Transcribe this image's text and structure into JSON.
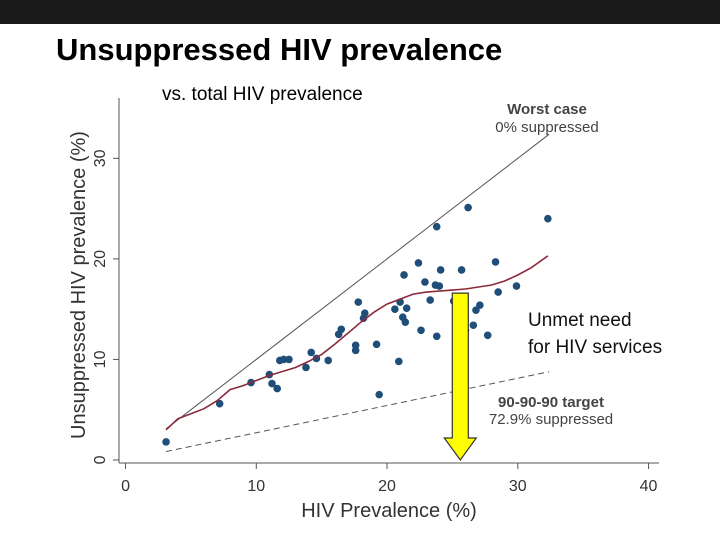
{
  "slide": {
    "title": "Unsuppressed HIV prevalence",
    "subtitle": "vs. total HIV prevalence"
  },
  "colors": {
    "points": "#1f4e79",
    "trend": "#8b2a3a",
    "arrow_fill": "#ffff00",
    "arrow_stroke": "#333333",
    "reference": "#555555",
    "topbar": "#1a1a1a"
  },
  "chart_data": {
    "type": "scatter",
    "xlabel": "HIV Prevalence (%)",
    "ylabel": "Unsuppressed HIV prevalence (%)",
    "xlim": [
      -0.5,
      40.8
    ],
    "ylim": [
      -0.3,
      36
    ],
    "xticks": [
      0,
      10,
      20,
      30,
      40
    ],
    "yticks": [
      0,
      10,
      20,
      30
    ],
    "points": [
      [
        3.1,
        1.8
      ],
      [
        7.2,
        5.6
      ],
      [
        9.6,
        7.7
      ],
      [
        11.0,
        8.5
      ],
      [
        11.2,
        7.6
      ],
      [
        11.6,
        7.1
      ],
      [
        11.8,
        9.9
      ],
      [
        12.1,
        10.0
      ],
      [
        12.5,
        10.0
      ],
      [
        13.8,
        9.2
      ],
      [
        14.2,
        10.7
      ],
      [
        14.6,
        10.1
      ],
      [
        15.5,
        9.9
      ],
      [
        16.3,
        12.5
      ],
      [
        16.5,
        13.0
      ],
      [
        17.6,
        10.9
      ],
      [
        17.6,
        11.4
      ],
      [
        17.8,
        15.7
      ],
      [
        18.2,
        14.1
      ],
      [
        18.3,
        14.6
      ],
      [
        19.2,
        11.5
      ],
      [
        19.4,
        6.5
      ],
      [
        20.6,
        15.0
      ],
      [
        20.9,
        9.8
      ],
      [
        21.0,
        15.7
      ],
      [
        21.2,
        14.2
      ],
      [
        21.3,
        18.4
      ],
      [
        21.4,
        13.7
      ],
      [
        21.5,
        15.1
      ],
      [
        22.4,
        19.6
      ],
      [
        22.6,
        12.9
      ],
      [
        22.9,
        17.7
      ],
      [
        23.3,
        15.9
      ],
      [
        23.7,
        17.4
      ],
      [
        23.8,
        23.2
      ],
      [
        23.8,
        12.3
      ],
      [
        24.0,
        17.3
      ],
      [
        24.1,
        18.9
      ],
      [
        25.1,
        15.8
      ],
      [
        25.4,
        12.8
      ],
      [
        25.7,
        18.9
      ],
      [
        26.0,
        12.9
      ],
      [
        26.2,
        25.1
      ],
      [
        26.6,
        13.4
      ],
      [
        26.8,
        14.9
      ],
      [
        27.1,
        15.4
      ],
      [
        27.7,
        12.4
      ],
      [
        28.3,
        19.7
      ],
      [
        28.5,
        16.7
      ],
      [
        29.9,
        17.3
      ],
      [
        32.3,
        24.0
      ]
    ],
    "trend_line": [
      [
        3.1,
        3.0
      ],
      [
        4.0,
        4.1
      ],
      [
        5.0,
        4.6
      ],
      [
        6.0,
        5.1
      ],
      [
        7.0,
        5.9
      ],
      [
        8.0,
        7.0
      ],
      [
        9.0,
        7.4
      ],
      [
        10.0,
        7.9
      ],
      [
        11.0,
        8.4
      ],
      [
        12.0,
        8.8
      ],
      [
        13.0,
        9.2
      ],
      [
        14.0,
        9.8
      ],
      [
        15.0,
        10.5
      ],
      [
        16.0,
        11.5
      ],
      [
        17.0,
        12.6
      ],
      [
        18.0,
        13.7
      ],
      [
        19.0,
        14.7
      ],
      [
        20.0,
        15.5
      ],
      [
        21.0,
        16.0
      ],
      [
        22.0,
        16.5
      ],
      [
        23.0,
        16.7
      ],
      [
        24.0,
        16.8
      ],
      [
        25.0,
        16.9
      ],
      [
        26.0,
        17.0
      ],
      [
        27.0,
        17.2
      ],
      [
        28.0,
        17.4
      ],
      [
        29.0,
        17.8
      ],
      [
        30.0,
        18.4
      ],
      [
        31.0,
        19.1
      ],
      [
        32.3,
        20.3
      ]
    ],
    "worst_case_line": {
      "x": [
        3.1,
        32.4
      ],
      "y": [
        3.1,
        32.4
      ]
    },
    "target_line": {
      "x": [
        3.1,
        32.4
      ],
      "y": [
        0.84,
        8.78
      ]
    },
    "arrow": {
      "x": 25.6,
      "from_y": 16.6,
      "to_y": 0.0
    },
    "annotations": {
      "worst_case": {
        "title": "Worst case",
        "text": "0% suppressed"
      },
      "target": {
        "title": "90-90-90 target",
        "text": "72.9% suppressed"
      },
      "unmet_need": [
        "Unmet need",
        "for HIV services"
      ]
    }
  }
}
